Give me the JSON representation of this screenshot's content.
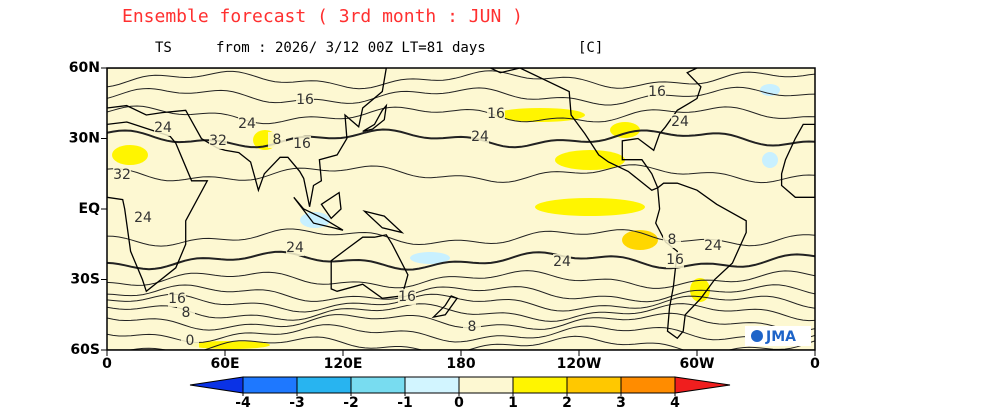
{
  "header": {
    "title": "Ensemble forecast ( 3rd month : JUN )",
    "variable": "TS",
    "run": "from : 2026/ 3/12 00Z LT=81 days",
    "unit": "[C]"
  },
  "map": {
    "lat_labels": [
      "60N",
      "30N",
      "EQ",
      "30S",
      "60S"
    ],
    "lon_labels": [
      "0",
      "60E",
      "120E",
      "180",
      "120W",
      "60W",
      "0"
    ],
    "contour_labels": [
      "16",
      "16",
      "24",
      "24",
      "32",
      "24",
      "8",
      "16",
      "32",
      "24",
      "24",
      "24",
      "8",
      "16",
      "24",
      "16",
      "8",
      "16",
      "8",
      "0",
      "16",
      "24"
    ],
    "logo": "JMA"
  },
  "colorbar": {
    "ticks": [
      -4,
      -3,
      -2,
      -1,
      0,
      1,
      2,
      3,
      4
    ],
    "colors": [
      "#0a32e6",
      "#1e78ff",
      "#28b4f0",
      "#78dcf0",
      "#d2f5ff",
      "#fdf8d2",
      "#fff500",
      "#ffc800",
      "#ff8c00",
      "#f01e1e"
    ]
  }
}
